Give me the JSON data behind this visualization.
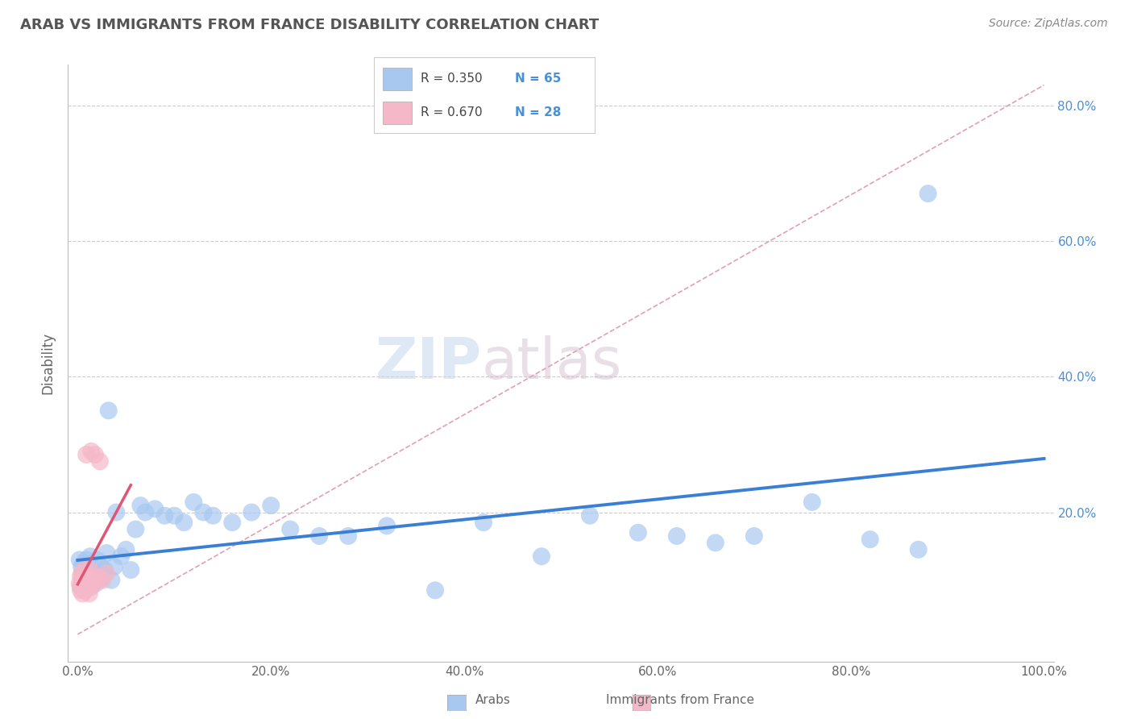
{
  "title": "ARAB VS IMMIGRANTS FROM FRANCE DISABILITY CORRELATION CHART",
  "source": "Source: ZipAtlas.com",
  "ylabel": "Disability",
  "xlim": [
    0,
    1.0
  ],
  "ylim": [
    0.0,
    0.85
  ],
  "xticks": [
    0.0,
    0.2,
    0.4,
    0.6,
    0.8,
    1.0
  ],
  "xtick_labels": [
    "0.0%",
    "20.0%",
    "40.0%",
    "60.0%",
    "80.0%",
    "100.0%"
  ],
  "right_ytick_positions": [
    0.2,
    0.4,
    0.6,
    0.8
  ],
  "right_ytick_labels": [
    "20.0%",
    "40.0%",
    "60.0%",
    "80.0%"
  ],
  "arab_color": "#a8c8f0",
  "france_color": "#f5b8c8",
  "arab_line_color": "#3a7fd5",
  "france_line_color": "#e05575",
  "watermark_zip": "ZIP",
  "watermark_atlas": "atlas",
  "arab_scatter_x": [
    0.002,
    0.003,
    0.004,
    0.005,
    0.005,
    0.006,
    0.006,
    0.007,
    0.007,
    0.008,
    0.008,
    0.009,
    0.009,
    0.01,
    0.01,
    0.011,
    0.012,
    0.013,
    0.014,
    0.015,
    0.016,
    0.017,
    0.018,
    0.02,
    0.022,
    0.024,
    0.026,
    0.028,
    0.03,
    0.032,
    0.035,
    0.038,
    0.04,
    0.045,
    0.05,
    0.055,
    0.06,
    0.065,
    0.07,
    0.08,
    0.09,
    0.1,
    0.11,
    0.12,
    0.13,
    0.14,
    0.16,
    0.18,
    0.2,
    0.22,
    0.25,
    0.28,
    0.32,
    0.37,
    0.42,
    0.48,
    0.53,
    0.58,
    0.62,
    0.66,
    0.7,
    0.76,
    0.82,
    0.87,
    0.88
  ],
  "arab_scatter_y": [
    0.13,
    0.09,
    0.12,
    0.1,
    0.11,
    0.095,
    0.125,
    0.085,
    0.105,
    0.115,
    0.09,
    0.1,
    0.13,
    0.11,
    0.095,
    0.12,
    0.1,
    0.135,
    0.09,
    0.105,
    0.115,
    0.095,
    0.11,
    0.13,
    0.1,
    0.12,
    0.105,
    0.115,
    0.14,
    0.35,
    0.1,
    0.12,
    0.2,
    0.135,
    0.145,
    0.115,
    0.175,
    0.21,
    0.2,
    0.205,
    0.195,
    0.195,
    0.185,
    0.215,
    0.2,
    0.195,
    0.185,
    0.2,
    0.21,
    0.175,
    0.165,
    0.165,
    0.18,
    0.085,
    0.185,
    0.135,
    0.195,
    0.17,
    0.165,
    0.155,
    0.165,
    0.215,
    0.16,
    0.145,
    0.67
  ],
  "france_scatter_x": [
    0.002,
    0.003,
    0.003,
    0.004,
    0.004,
    0.005,
    0.005,
    0.006,
    0.006,
    0.007,
    0.007,
    0.008,
    0.008,
    0.009,
    0.009,
    0.01,
    0.011,
    0.012,
    0.013,
    0.014,
    0.015,
    0.017,
    0.018,
    0.019,
    0.021,
    0.023,
    0.026,
    0.03
  ],
  "france_scatter_y": [
    0.095,
    0.085,
    0.105,
    0.09,
    0.11,
    0.08,
    0.095,
    0.09,
    0.105,
    0.085,
    0.115,
    0.085,
    0.1,
    0.285,
    0.09,
    0.105,
    0.095,
    0.08,
    0.115,
    0.29,
    0.095,
    0.1,
    0.285,
    0.095,
    0.105,
    0.275,
    0.1,
    0.11
  ]
}
